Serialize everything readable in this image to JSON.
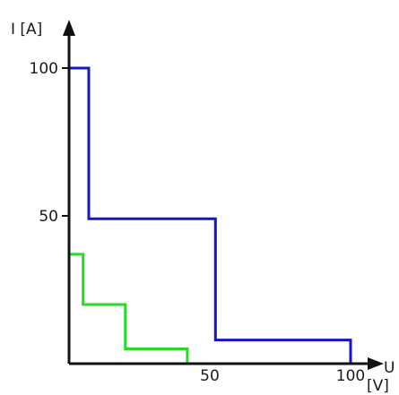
{
  "chart_data": {
    "type": "line",
    "step": true,
    "title": "",
    "xlabel": "U",
    "xunit": "[V]",
    "ylabel": "I [A]",
    "xlim": [
      0,
      105
    ],
    "ylim": [
      0,
      105
    ],
    "xticks": [
      50,
      100
    ],
    "yticks": [
      50,
      100
    ],
    "grid": false,
    "series": [
      {
        "color": "#1414c8",
        "x": [
          0,
          7,
          7,
          52,
          52,
          100,
          100
        ],
        "y": [
          100,
          100,
          49,
          49,
          8,
          8,
          0
        ]
      },
      {
        "color": "#22dd22",
        "x": [
          0,
          5,
          5,
          20,
          20,
          42,
          42
        ],
        "y": [
          37,
          37,
          20,
          20,
          5,
          5,
          0
        ]
      }
    ]
  }
}
